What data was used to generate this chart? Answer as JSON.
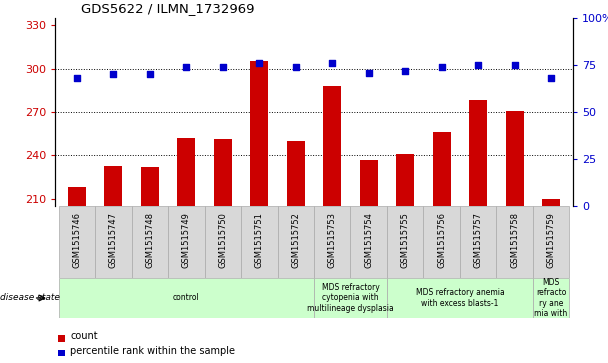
{
  "title": "GDS5622 / ILMN_1732969",
  "samples": [
    "GSM1515746",
    "GSM1515747",
    "GSM1515748",
    "GSM1515749",
    "GSM1515750",
    "GSM1515751",
    "GSM1515752",
    "GSM1515753",
    "GSM1515754",
    "GSM1515755",
    "GSM1515756",
    "GSM1515757",
    "GSM1515758",
    "GSM1515759"
  ],
  "counts": [
    218,
    233,
    232,
    252,
    251,
    305,
    250,
    288,
    237,
    241,
    256,
    278,
    271,
    210
  ],
  "percentile_ranks": [
    68,
    70,
    70,
    74,
    74,
    76,
    74,
    76,
    71,
    72,
    74,
    75,
    75,
    68
  ],
  "ylim_left": [
    205,
    335
  ],
  "ylim_right": [
    0,
    100
  ],
  "yticks_left": [
    210,
    240,
    270,
    300,
    330
  ],
  "yticks_right": [
    0,
    25,
    50,
    75,
    100
  ],
  "bar_color": "#cc0000",
  "dot_color": "#0000cc",
  "bar_width": 0.5,
  "disease_groups": [
    {
      "label": "control",
      "start": 0,
      "end": 7,
      "color": "#ccffcc",
      "text_lines": 1
    },
    {
      "label": "MDS refractory\ncytopenia with\nmultilineage dysplasia",
      "start": 7,
      "end": 9,
      "color": "#ccffcc",
      "text_lines": 3
    },
    {
      "label": "MDS refractory anemia\nwith excess blasts-1",
      "start": 9,
      "end": 13,
      "color": "#ccffcc",
      "text_lines": 2
    },
    {
      "label": "MDS\nrefracto\nry ane\nmia with",
      "start": 13,
      "end": 14,
      "color": "#ccffcc",
      "text_lines": 4
    }
  ],
  "disease_state_label": "disease state",
  "legend_count_label": "count",
  "legend_pct_label": "percentile rank within the sample",
  "tick_label_color_left": "#cc0000",
  "tick_label_color_right": "#0000cc",
  "sample_box_color": "#d8d8d8",
  "plot_bg_color": "#ffffff"
}
